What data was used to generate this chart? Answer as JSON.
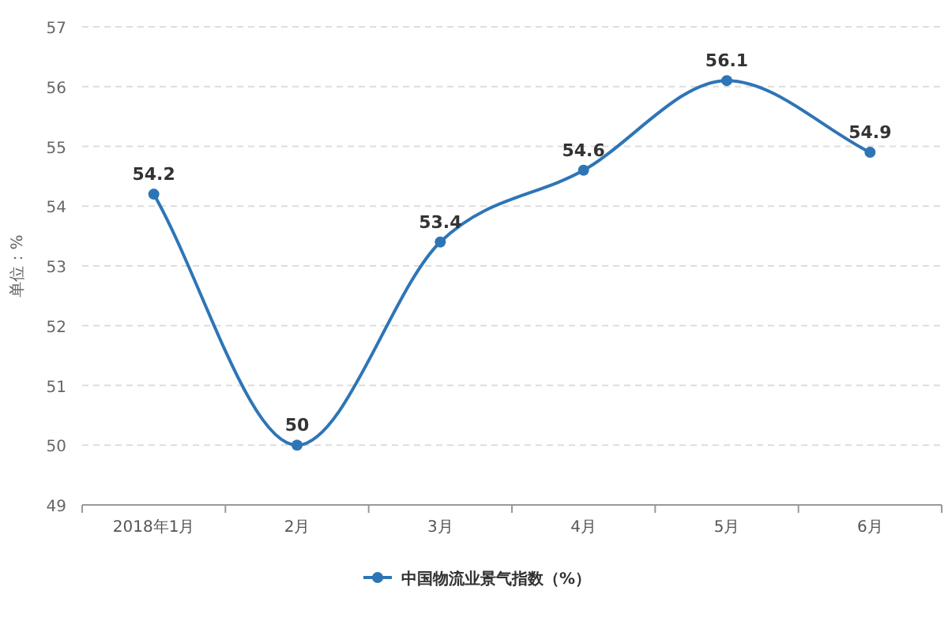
{
  "chart_data": {
    "type": "line",
    "ylabel": "单位：%",
    "categories": [
      "2018年1月",
      "2月",
      "3月",
      "4月",
      "5月",
      "6月"
    ],
    "series": [
      {
        "name": "中国物流业景气指数（%）",
        "color": "#2e75b6",
        "values": [
          54.2,
          50,
          53.4,
          54.6,
          56.1,
          54.9
        ]
      }
    ],
    "ylim": [
      49,
      57
    ],
    "yticks": [
      49,
      50,
      51,
      52,
      53,
      54,
      55,
      56,
      57
    ],
    "grid": "y",
    "legend": "bottom",
    "marker": "circle",
    "data_labels": true
  }
}
